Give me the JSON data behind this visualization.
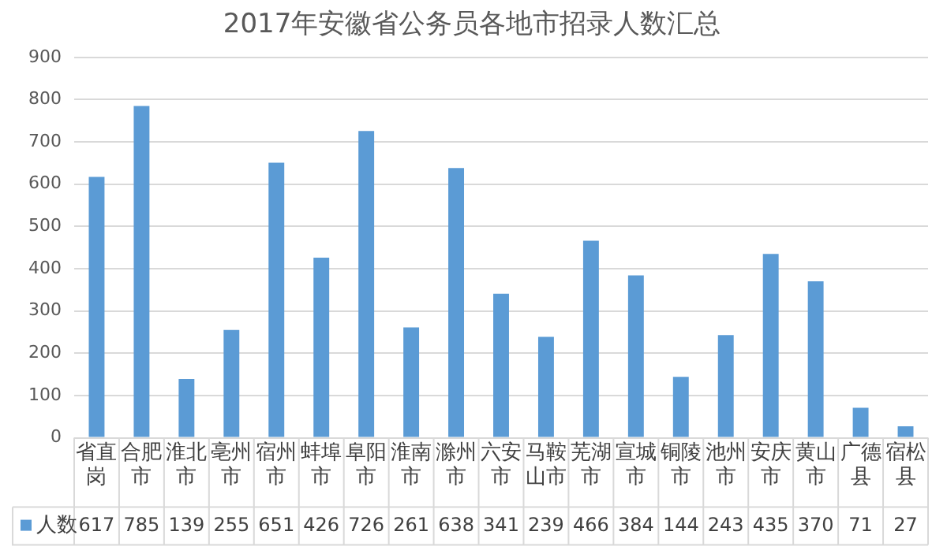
{
  "chart_data": {
    "type": "bar",
    "title": "2017年安徽省公务员各地市招录人数汇总",
    "categories": [
      "省直岗",
      "合肥市",
      "淮北市",
      "亳州市",
      "宿州市",
      "蚌埠市",
      "阜阳市",
      "淮南市",
      "滁州市",
      "六安市",
      "马鞍山市",
      "芜湖市",
      "宣城市",
      "铜陵市",
      "池州市",
      "安庆市",
      "黄山市",
      "广德县",
      "宿松县"
    ],
    "series": [
      {
        "name": "人数",
        "color": "#5b9bd5",
        "values": [
          617,
          785,
          139,
          255,
          651,
          426,
          726,
          261,
          638,
          341,
          239,
          466,
          384,
          144,
          243,
          435,
          370,
          71,
          27
        ]
      }
    ],
    "ylim": [
      0,
      900
    ],
    "yticks": [
      0,
      100,
      200,
      300,
      400,
      500,
      600,
      700,
      800,
      900
    ],
    "grid": "y",
    "legend": "bottom",
    "data_labels": true
  }
}
